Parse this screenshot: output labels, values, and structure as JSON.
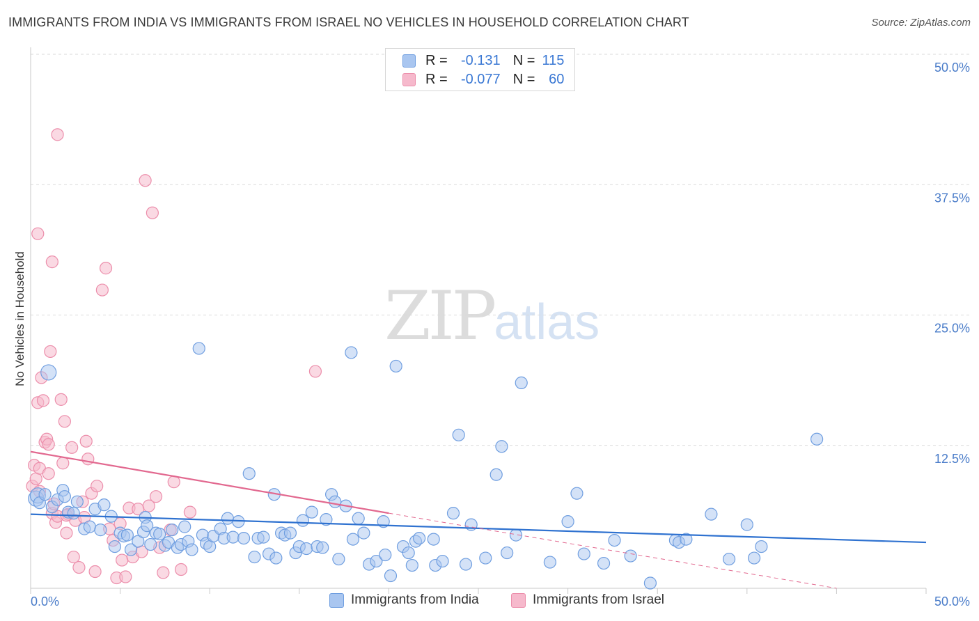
{
  "title": "IMMIGRANTS FROM INDIA VS IMMIGRANTS FROM ISRAEL NO VEHICLES IN HOUSEHOLD CORRELATION CHART",
  "source": "Source: ZipAtlas.com",
  "watermark": {
    "zip": "ZIP",
    "atlas": "atlas"
  },
  "legend": {
    "r_label": "R =",
    "n_label": "N =",
    "india": {
      "r": "-0.131",
      "n": "115"
    },
    "israel": {
      "r": "-0.077",
      "n": "60"
    }
  },
  "colors": {
    "india_fill": "#a9c6f0",
    "india_stroke": "#6f9ee0",
    "india_line": "#2f72d0",
    "israel_fill": "#f6b9cc",
    "israel_stroke": "#ec8eab",
    "israel_line": "#e2688f",
    "grid": "#d9d9d9",
    "axis_text": "#4a7cc9"
  },
  "chart_data": {
    "type": "scatter",
    "title": "IMMIGRANTS FROM INDIA VS IMMIGRANTS FROM ISRAEL NO VEHICLES IN HOUSEHOLD CORRELATION CHART",
    "xlabel": "",
    "ylabel": "No Vehicles in Household",
    "xlim": [
      0,
      50
    ],
    "ylim": [
      0,
      50
    ],
    "x_tick_labels": [
      "0.0%",
      "50.0%"
    ],
    "y_ticks": [
      12.5,
      25.0,
      37.5,
      50.0
    ],
    "y_tick_labels": [
      "12.5%",
      "25.0%",
      "37.5%",
      "50.0%"
    ],
    "grid": true,
    "legend_position": "top-center",
    "series": [
      {
        "name": "Immigrants from India",
        "trend": {
          "x0": 0,
          "y0": 7.1,
          "x1": 50,
          "y1": 4.4
        },
        "points": [
          [
            0.3,
            8.6
          ],
          [
            0.4,
            8.9
          ],
          [
            0.5,
            8.2
          ],
          [
            0.8,
            9.0
          ],
          [
            1.0,
            20.7
          ],
          [
            1.2,
            7.8
          ],
          [
            1.5,
            8.5
          ],
          [
            1.8,
            9.4
          ],
          [
            1.9,
            8.8
          ],
          [
            2.1,
            7.3
          ],
          [
            2.4,
            7.2
          ],
          [
            2.6,
            8.3
          ],
          [
            3.0,
            5.7
          ],
          [
            3.3,
            5.9
          ],
          [
            3.6,
            7.6
          ],
          [
            3.9,
            5.6
          ],
          [
            4.1,
            8.0
          ],
          [
            4.5,
            6.9
          ],
          [
            4.7,
            4.0
          ],
          [
            5.0,
            5.3
          ],
          [
            5.2,
            5.0
          ],
          [
            5.4,
            5.1
          ],
          [
            5.6,
            3.7
          ],
          [
            6.0,
            4.5
          ],
          [
            6.3,
            5.4
          ],
          [
            6.4,
            6.8
          ],
          [
            6.5,
            6.0
          ],
          [
            6.7,
            4.2
          ],
          [
            7.0,
            5.3
          ],
          [
            7.2,
            5.2
          ],
          [
            7.5,
            4.1
          ],
          [
            7.7,
            4.4
          ],
          [
            7.9,
            5.6
          ],
          [
            8.2,
            3.9
          ],
          [
            8.4,
            4.2
          ],
          [
            8.6,
            5.9
          ],
          [
            8.8,
            4.5
          ],
          [
            9.0,
            3.7
          ],
          [
            9.4,
            23.0
          ],
          [
            9.6,
            5.1
          ],
          [
            9.8,
            4.3
          ],
          [
            10.0,
            4.0
          ],
          [
            10.2,
            5.0
          ],
          [
            10.6,
            5.7
          ],
          [
            10.8,
            4.8
          ],
          [
            11.0,
            6.7
          ],
          [
            11.3,
            4.9
          ],
          [
            11.6,
            6.4
          ],
          [
            11.9,
            4.8
          ],
          [
            12.2,
            11.0
          ],
          [
            12.5,
            3.0
          ],
          [
            12.7,
            4.8
          ],
          [
            13.0,
            4.9
          ],
          [
            13.3,
            3.3
          ],
          [
            13.6,
            9.0
          ],
          [
            13.7,
            2.9
          ],
          [
            14.0,
            5.3
          ],
          [
            14.2,
            5.1
          ],
          [
            14.5,
            5.3
          ],
          [
            14.8,
            3.4
          ],
          [
            15.0,
            4.0
          ],
          [
            15.2,
            6.5
          ],
          [
            15.4,
            3.8
          ],
          [
            15.7,
            7.3
          ],
          [
            16.0,
            4.0
          ],
          [
            16.3,
            3.9
          ],
          [
            16.5,
            6.6
          ],
          [
            16.8,
            9.0
          ],
          [
            17.0,
            8.3
          ],
          [
            17.2,
            2.8
          ],
          [
            17.6,
            7.9
          ],
          [
            17.9,
            22.6
          ],
          [
            18.0,
            4.7
          ],
          [
            18.3,
            6.7
          ],
          [
            18.6,
            5.3
          ],
          [
            18.9,
            2.3
          ],
          [
            19.3,
            2.6
          ],
          [
            19.7,
            6.4
          ],
          [
            19.8,
            3.2
          ],
          [
            20.1,
            1.2
          ],
          [
            20.4,
            21.3
          ],
          [
            20.8,
            4.0
          ],
          [
            21.1,
            3.4
          ],
          [
            21.3,
            2.2
          ],
          [
            21.5,
            4.5
          ],
          [
            21.7,
            4.8
          ],
          [
            22.5,
            4.7
          ],
          [
            22.6,
            2.2
          ],
          [
            23.0,
            2.6
          ],
          [
            23.6,
            7.2
          ],
          [
            23.9,
            14.7
          ],
          [
            24.3,
            2.3
          ],
          [
            24.6,
            6.1
          ],
          [
            25.4,
            2.9
          ],
          [
            26.0,
            10.9
          ],
          [
            26.3,
            13.6
          ],
          [
            26.6,
            3.4
          ],
          [
            27.1,
            5.1
          ],
          [
            27.4,
            19.7
          ],
          [
            29.0,
            2.5
          ],
          [
            30.0,
            6.4
          ],
          [
            30.5,
            9.1
          ],
          [
            30.9,
            3.3
          ],
          [
            32.0,
            2.4
          ],
          [
            32.6,
            4.6
          ],
          [
            33.5,
            3.1
          ],
          [
            34.6,
            0.5
          ],
          [
            36.0,
            4.6
          ],
          [
            36.2,
            4.4
          ],
          [
            36.6,
            4.7
          ],
          [
            38.0,
            7.1
          ],
          [
            39.0,
            2.8
          ],
          [
            40.0,
            6.1
          ],
          [
            40.4,
            2.9
          ],
          [
            40.8,
            4.0
          ],
          [
            43.9,
            14.3
          ]
        ]
      },
      {
        "name": "Immigrants from Israel",
        "trend": {
          "x0": 0,
          "y0": 13.1,
          "x1": 20,
          "y1": 7.2
        },
        "trend_dashed": {
          "x0": 20,
          "y0": 7.2,
          "x1": 45,
          "y1": 0.0
        },
        "points": [
          [
            0.1,
            9.8
          ],
          [
            0.2,
            11.8
          ],
          [
            0.3,
            10.5
          ],
          [
            0.4,
            34.0
          ],
          [
            0.4,
            17.8
          ],
          [
            0.5,
            11.5
          ],
          [
            0.5,
            9.3
          ],
          [
            0.6,
            20.2
          ],
          [
            0.7,
            18.0
          ],
          [
            0.8,
            14.0
          ],
          [
            0.9,
            14.3
          ],
          [
            1.0,
            13.8
          ],
          [
            1.0,
            11.0
          ],
          [
            1.1,
            22.7
          ],
          [
            1.2,
            31.3
          ],
          [
            1.2,
            7.2
          ],
          [
            1.3,
            8.1
          ],
          [
            1.4,
            6.3
          ],
          [
            1.5,
            6.9
          ],
          [
            1.5,
            43.5
          ],
          [
            1.7,
            18.1
          ],
          [
            1.8,
            12.0
          ],
          [
            1.9,
            16.0
          ],
          [
            2.0,
            5.3
          ],
          [
            2.1,
            7.1
          ],
          [
            2.3,
            13.5
          ],
          [
            2.4,
            3.0
          ],
          [
            2.5,
            6.5
          ],
          [
            2.7,
            2.0
          ],
          [
            2.9,
            8.3
          ],
          [
            3.0,
            6.8
          ],
          [
            3.1,
            14.1
          ],
          [
            3.2,
            12.4
          ],
          [
            3.4,
            9.1
          ],
          [
            3.6,
            1.6
          ],
          [
            3.7,
            9.8
          ],
          [
            4.0,
            28.6
          ],
          [
            4.2,
            30.7
          ],
          [
            4.4,
            5.7
          ],
          [
            4.6,
            4.6
          ],
          [
            4.8,
            1.0
          ],
          [
            5.0,
            6.2
          ],
          [
            5.1,
            2.7
          ],
          [
            5.3,
            1.1
          ],
          [
            5.5,
            7.7
          ],
          [
            5.7,
            3.0
          ],
          [
            6.0,
            7.6
          ],
          [
            6.2,
            3.5
          ],
          [
            6.4,
            39.1
          ],
          [
            6.6,
            7.9
          ],
          [
            6.8,
            36.0
          ],
          [
            7.0,
            8.8
          ],
          [
            7.2,
            3.9
          ],
          [
            7.4,
            1.5
          ],
          [
            7.8,
            5.6
          ],
          [
            8.0,
            10.2
          ],
          [
            8.4,
            1.8
          ],
          [
            8.9,
            7.3
          ],
          [
            15.9,
            20.8
          ],
          [
            2.0,
            7.0
          ]
        ]
      }
    ]
  },
  "bottom_legend": {
    "india": "Immigrants from India",
    "israel": "Immigrants from Israel"
  }
}
